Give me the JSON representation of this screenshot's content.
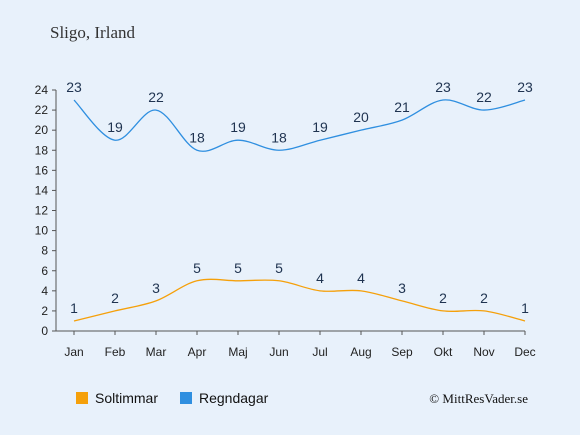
{
  "chart_data": {
    "type": "line",
    "title": "Sligo, Irland",
    "categories": [
      "Jan",
      "Feb",
      "Mar",
      "Apr",
      "Maj",
      "Jun",
      "Jul",
      "Aug",
      "Sep",
      "Okt",
      "Nov",
      "Dec"
    ],
    "series": [
      {
        "name": "Soltimmar",
        "color": "#f5a00a",
        "values": [
          1,
          2,
          3,
          5,
          5,
          5,
          4,
          4,
          3,
          2,
          2,
          1
        ]
      },
      {
        "name": "Regndagar",
        "color": "#2f8fe0",
        "values": [
          23,
          19,
          22,
          18,
          19,
          18,
          19,
          20,
          21,
          23,
          22,
          23
        ]
      }
    ],
    "ylim": [
      0,
      24
    ],
    "yticks": [
      "0",
      "2",
      "4",
      "6",
      "8",
      "10",
      "12",
      "14",
      "16",
      "18",
      "20",
      "22",
      "24"
    ],
    "grid": false,
    "legend_position": "bottom-left",
    "credit": "© MittResVader.se"
  }
}
